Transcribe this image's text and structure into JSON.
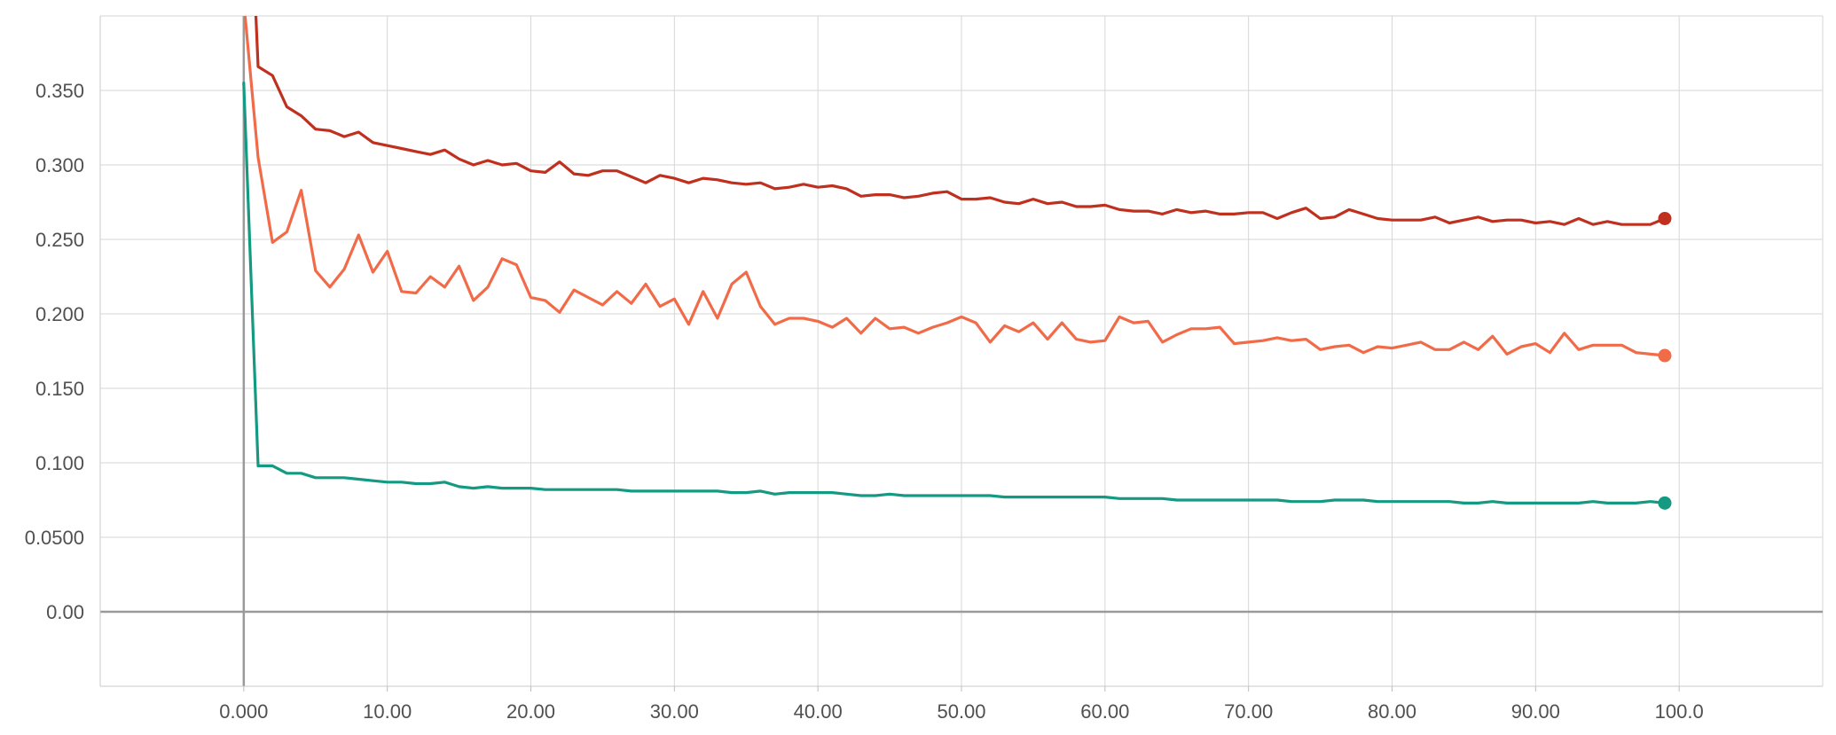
{
  "chart_data": {
    "type": "line",
    "title": "",
    "xlabel": "",
    "ylabel": "",
    "xlim": [
      -10,
      110
    ],
    "ylim": [
      -0.05,
      0.4
    ],
    "grid": true,
    "x_ticks": [
      "0.000",
      "10.00",
      "20.00",
      "30.00",
      "40.00",
      "50.00",
      "60.00",
      "70.00",
      "80.00",
      "90.00",
      "100.0"
    ],
    "y_ticks": [
      "0.00",
      "0.0500",
      "0.100",
      "0.150",
      "0.200",
      "0.250",
      "0.300",
      "0.350"
    ],
    "series": [
      {
        "color": "#c0301f",
        "x": [
          0.5,
          0.8,
          1,
          2,
          3,
          4,
          5,
          6,
          7,
          8,
          9,
          10,
          11,
          12,
          13,
          14,
          15,
          16,
          17,
          18,
          19,
          20,
          21,
          22,
          23,
          24,
          25,
          26,
          27,
          28,
          29,
          30,
          31,
          32,
          33,
          34,
          35,
          36,
          37,
          38,
          39,
          40,
          41,
          42,
          43,
          44,
          45,
          46,
          47,
          48,
          49,
          50,
          51,
          52,
          53,
          54,
          55,
          56,
          57,
          58,
          59,
          60,
          61,
          62,
          63,
          64,
          65,
          66,
          67,
          68,
          69,
          70,
          71,
          72,
          73,
          74,
          75,
          76,
          77,
          78,
          79,
          80,
          81,
          82,
          83,
          84,
          85,
          86,
          87,
          88,
          89,
          90,
          91,
          92,
          93,
          94,
          95,
          96,
          97,
          98,
          99
        ],
        "values": [
          0.41,
          0.41,
          0.366,
          0.36,
          0.339,
          0.333,
          0.324,
          0.323,
          0.319,
          0.322,
          0.315,
          0.313,
          0.311,
          0.309,
          0.307,
          0.31,
          0.304,
          0.3,
          0.303,
          0.3,
          0.301,
          0.296,
          0.295,
          0.302,
          0.294,
          0.293,
          0.296,
          0.296,
          0.292,
          0.288,
          0.293,
          0.291,
          0.288,
          0.291,
          0.29,
          0.288,
          0.287,
          0.288,
          0.284,
          0.285,
          0.287,
          0.285,
          0.286,
          0.284,
          0.279,
          0.28,
          0.28,
          0.278,
          0.279,
          0.281,
          0.282,
          0.277,
          0.277,
          0.278,
          0.275,
          0.274,
          0.277,
          0.274,
          0.275,
          0.272,
          0.272,
          0.273,
          0.27,
          0.269,
          0.269,
          0.267,
          0.27,
          0.268,
          0.269,
          0.267,
          0.267,
          0.268,
          0.268,
          0.264,
          0.268,
          0.271,
          0.264,
          0.265,
          0.27,
          0.267,
          0.264,
          0.263,
          0.263,
          0.263,
          0.265,
          0.261,
          0.263,
          0.265,
          0.262,
          0.263,
          0.263,
          0.261,
          0.262,
          0.26,
          0.264,
          0.26,
          0.262,
          0.26,
          0.26,
          0.26,
          0.264
        ]
      },
      {
        "color": "#f26b49",
        "x": [
          0,
          1,
          2,
          3,
          4,
          5,
          6,
          7,
          8,
          9,
          10,
          11,
          12,
          13,
          14,
          15,
          16,
          17,
          18,
          19,
          20,
          21,
          22,
          23,
          24,
          25,
          26,
          27,
          28,
          29,
          30,
          31,
          32,
          33,
          34,
          35,
          36,
          37,
          38,
          39,
          40,
          41,
          42,
          43,
          44,
          45,
          46,
          47,
          48,
          49,
          50,
          51,
          52,
          53,
          54,
          55,
          56,
          57,
          58,
          59,
          60,
          61,
          62,
          63,
          64,
          65,
          66,
          67,
          68,
          69,
          70,
          71,
          72,
          73,
          74,
          75,
          76,
          77,
          78,
          79,
          80,
          81,
          82,
          83,
          84,
          85,
          86,
          87,
          88,
          89,
          90,
          91,
          92,
          93,
          94,
          95,
          96,
          97,
          98,
          99
        ],
        "values": [
          0.41,
          0.305,
          0.248,
          0.255,
          0.283,
          0.229,
          0.218,
          0.23,
          0.253,
          0.228,
          0.242,
          0.215,
          0.214,
          0.225,
          0.218,
          0.232,
          0.209,
          0.218,
          0.237,
          0.233,
          0.211,
          0.209,
          0.201,
          0.216,
          0.211,
          0.206,
          0.215,
          0.207,
          0.22,
          0.205,
          0.21,
          0.193,
          0.215,
          0.197,
          0.22,
          0.228,
          0.205,
          0.193,
          0.197,
          0.197,
          0.195,
          0.191,
          0.197,
          0.187,
          0.197,
          0.19,
          0.191,
          0.187,
          0.191,
          0.194,
          0.198,
          0.194,
          0.181,
          0.192,
          0.188,
          0.194,
          0.183,
          0.194,
          0.183,
          0.181,
          0.182,
          0.198,
          0.194,
          0.195,
          0.181,
          0.186,
          0.19,
          0.19,
          0.191,
          0.18,
          0.181,
          0.182,
          0.184,
          0.182,
          0.183,
          0.176,
          0.178,
          0.179,
          0.174,
          0.178,
          0.177,
          0.179,
          0.181,
          0.176,
          0.176,
          0.181,
          0.176,
          0.185,
          0.173,
          0.178,
          0.18,
          0.174,
          0.187,
          0.176,
          0.179,
          0.179,
          0.179,
          0.174,
          0.173,
          0.172
        ]
      },
      {
        "color": "#149a83",
        "x": [
          0,
          1,
          2,
          3,
          4,
          5,
          6,
          7,
          8,
          9,
          10,
          11,
          12,
          13,
          14,
          15,
          16,
          17,
          18,
          19,
          20,
          21,
          22,
          23,
          24,
          25,
          26,
          27,
          28,
          29,
          30,
          31,
          32,
          33,
          34,
          35,
          36,
          37,
          38,
          39,
          40,
          41,
          42,
          43,
          44,
          45,
          46,
          47,
          48,
          49,
          50,
          51,
          52,
          53,
          54,
          55,
          56,
          57,
          58,
          59,
          60,
          61,
          62,
          63,
          64,
          65,
          66,
          67,
          68,
          69,
          70,
          71,
          72,
          73,
          74,
          75,
          76,
          77,
          78,
          79,
          80,
          81,
          82,
          83,
          84,
          85,
          86,
          87,
          88,
          89,
          90,
          91,
          92,
          93,
          94,
          95,
          96,
          97,
          98,
          99
        ],
        "values": [
          0.355,
          0.098,
          0.098,
          0.093,
          0.093,
          0.09,
          0.09,
          0.09,
          0.089,
          0.088,
          0.087,
          0.087,
          0.086,
          0.086,
          0.087,
          0.084,
          0.083,
          0.084,
          0.083,
          0.083,
          0.083,
          0.082,
          0.082,
          0.082,
          0.082,
          0.082,
          0.082,
          0.081,
          0.081,
          0.081,
          0.081,
          0.081,
          0.081,
          0.081,
          0.08,
          0.08,
          0.081,
          0.079,
          0.08,
          0.08,
          0.08,
          0.08,
          0.079,
          0.078,
          0.078,
          0.079,
          0.078,
          0.078,
          0.078,
          0.078,
          0.078,
          0.078,
          0.078,
          0.077,
          0.077,
          0.077,
          0.077,
          0.077,
          0.077,
          0.077,
          0.077,
          0.076,
          0.076,
          0.076,
          0.076,
          0.075,
          0.075,
          0.075,
          0.075,
          0.075,
          0.075,
          0.075,
          0.075,
          0.074,
          0.074,
          0.074,
          0.075,
          0.075,
          0.075,
          0.074,
          0.074,
          0.074,
          0.074,
          0.074,
          0.074,
          0.073,
          0.073,
          0.074,
          0.073,
          0.073,
          0.073,
          0.073,
          0.073,
          0.073,
          0.074,
          0.073,
          0.073,
          0.073,
          0.074,
          0.073
        ]
      }
    ]
  }
}
